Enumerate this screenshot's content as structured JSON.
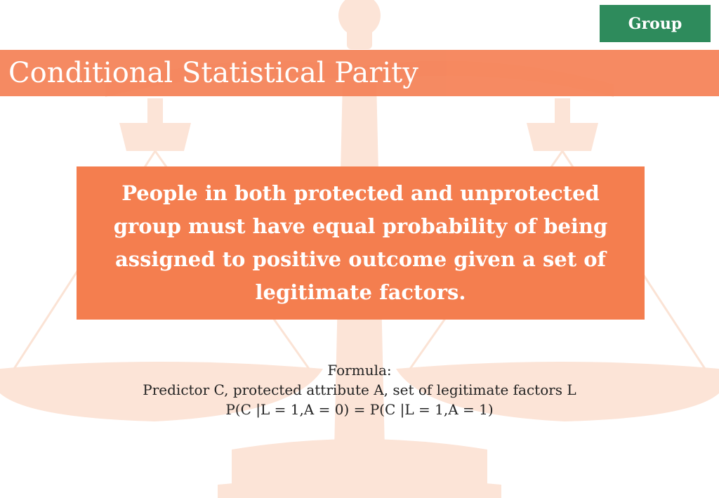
{
  "badge": {
    "label": "Group"
  },
  "title": {
    "text": "Conditional Statistical Parity"
  },
  "definition": {
    "text": "People in both protected and unprotected group must have equal probability of being assigned to positive outcome given a set of legitimate factors."
  },
  "formula": {
    "heading": "Formula:",
    "description": "Predictor C, protected attribute A, set of legitimate factors L",
    "equation": "P(C |L = 1,A = 0) = P(C |L = 1,A = 1)"
  },
  "colors": {
    "accent": "#f47e4f",
    "title_bar": "#f5845a",
    "badge": "#2e8b5c",
    "watermark": "#fce3d6"
  }
}
